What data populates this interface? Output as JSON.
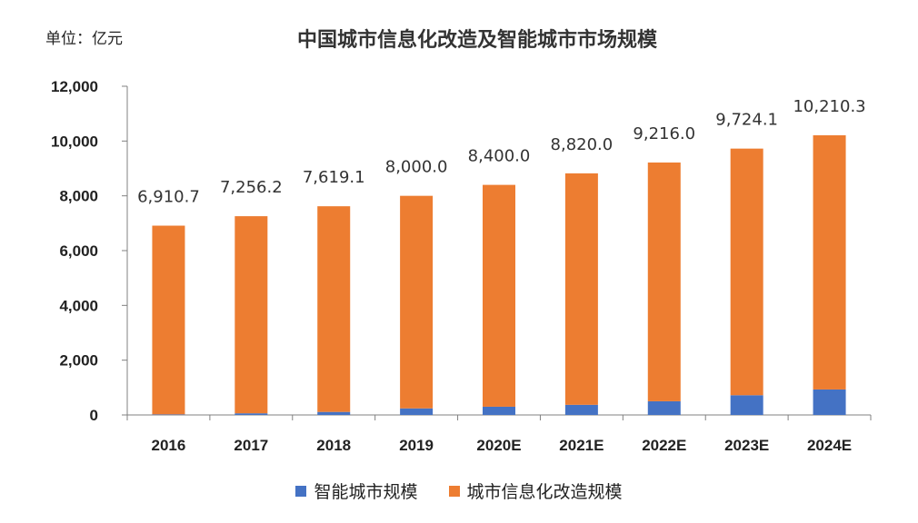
{
  "unit_label": "单位：亿元",
  "colors": {
    "smart_city": "#4472C4",
    "info_reform": "#ED7D31",
    "axis": "#808080"
  },
  "chart_data": {
    "type": "bar",
    "stacked": true,
    "title": "中国城市信息化改造及智能城市市场规模",
    "xlabel": "",
    "ylabel": "",
    "ylim": [
      0,
      12000
    ],
    "yticks": [
      0,
      2000,
      4000,
      6000,
      8000,
      10000,
      12000
    ],
    "ytick_labels": [
      "0",
      "2,000",
      "4,000",
      "6,000",
      "8,000",
      "10,000",
      "12,000"
    ],
    "categories": [
      "2016",
      "2017",
      "2018",
      "2019",
      "2020E",
      "2021E",
      "2022E",
      "2023E",
      "2024E"
    ],
    "totals": [
      6910.7,
      7256.2,
      7619.1,
      8000.0,
      8400.0,
      8820.0,
      9216.0,
      9724.1,
      10210.3
    ],
    "total_labels": [
      "6,910.7",
      "7,256.2",
      "7,619.1",
      "8,000.0",
      "8,400.0",
      "8,820.0",
      "9,216.0",
      "9,724.1",
      "10,210.3"
    ],
    "series": [
      {
        "name": "智能城市规模",
        "values": [
          20,
          60,
          110,
          240,
          300,
          370,
          500,
          720,
          930
        ]
      },
      {
        "name": "城市信息化改造规模",
        "values": [
          6890.7,
          7196.2,
          7509.1,
          7760.0,
          8100.0,
          8450.0,
          8716.0,
          9004.1,
          9280.3
        ]
      }
    ],
    "legend_position": "bottom",
    "grid": false
  }
}
